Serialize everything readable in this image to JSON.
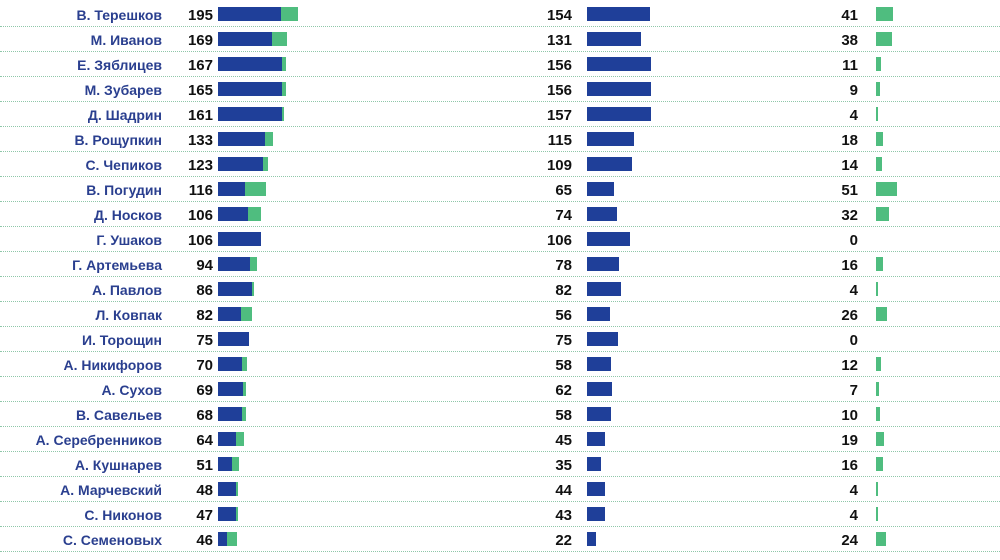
{
  "colors": {
    "first": "#1f3f99",
    "second": "#4fbd7f",
    "name": "#2a3f8f"
  },
  "chart_data": {
    "type": "bar",
    "categories": [
      "В. Терешков",
      "М. Иванов",
      "Е. Зяблицев",
      "М. Зубарев",
      "Д. Шадрин",
      "В. Рощупкин",
      "С. Чепиков",
      "В. Погудин",
      "Д. Носков",
      "Г. Ушаков",
      "Г. Артемьева",
      "А. Павлов",
      "Л. Ковпак",
      "И. Торощин",
      "А. Никифоров",
      "А. Сухов",
      "В. Савельев",
      "А. Серебренников",
      "А. Кушнарев",
      "А. Марчевский",
      "С. Никонов",
      "С. Семеновых"
    ],
    "totals": [
      195,
      169,
      167,
      165,
      161,
      133,
      123,
      116,
      106,
      106,
      94,
      86,
      82,
      75,
      70,
      69,
      68,
      64,
      51,
      48,
      47,
      46
    ],
    "series": [
      {
        "values": [
          154,
          131,
          156,
          156,
          157,
          115,
          109,
          65,
          74,
          106,
          78,
          82,
          56,
          75,
          58,
          62,
          58,
          45,
          35,
          44,
          43,
          22
        ]
      },
      {
        "values": [
          41,
          38,
          11,
          9,
          4,
          18,
          14,
          51,
          32,
          0,
          16,
          4,
          26,
          0,
          12,
          7,
          10,
          19,
          16,
          4,
          4,
          24
        ]
      }
    ]
  }
}
